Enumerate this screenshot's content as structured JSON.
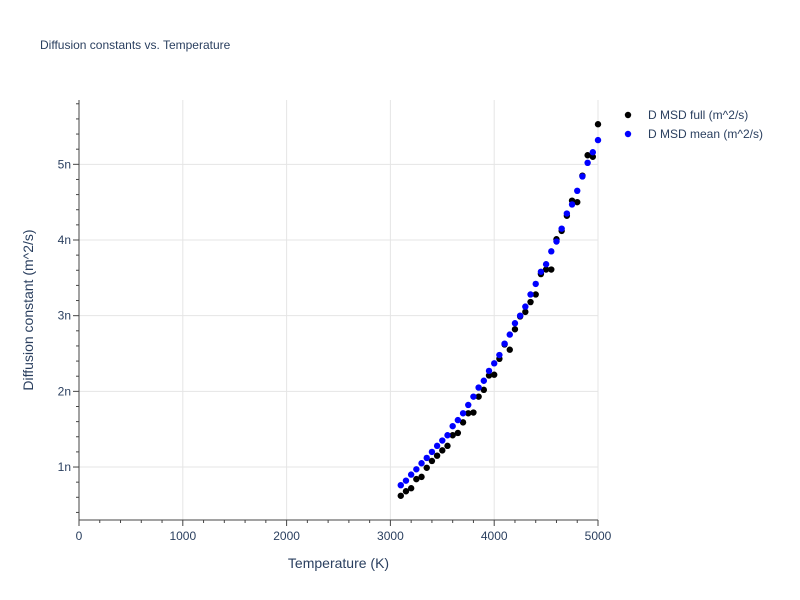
{
  "chart_data": {
    "type": "scatter",
    "title": "Diffusion constants vs. Temperature",
    "xlabel": "Temperature (K)",
    "ylabel": "Diffusion constant (m^2/s)",
    "xlim": [
      0,
      5000
    ],
    "ylim": [
      3e-10,
      5.85e-09
    ],
    "x_ticks": [
      0,
      1000,
      2000,
      3000,
      4000,
      5000
    ],
    "x_tick_labels": [
      "0",
      "1000",
      "2000",
      "3000",
      "4000",
      "5000"
    ],
    "y_ticks": [
      1e-09,
      2e-09,
      3e-09,
      4e-09,
      5e-09
    ],
    "y_tick_labels": [
      "1n",
      "2n",
      "3n",
      "4n",
      "5n"
    ],
    "grid": true,
    "legend_position": "top-right",
    "series": [
      {
        "name": "D MSD full (m^2/s)",
        "color": "#000000",
        "x": [
          3100,
          3150,
          3200,
          3250,
          3300,
          3350,
          3400,
          3450,
          3500,
          3550,
          3600,
          3650,
          3700,
          3750,
          3800,
          3850,
          3900,
          3950,
          4000,
          4050,
          4100,
          4150,
          4200,
          4250,
          4300,
          4350,
          4400,
          4450,
          4500,
          4550,
          4600,
          4650,
          4700,
          4750,
          4800,
          4850,
          4900,
          4950,
          5000
        ],
        "y": [
          6.2e-10,
          6.8e-10,
          7.2e-10,
          8.4e-10,
          8.7e-10,
          9.9e-10,
          1.08e-09,
          1.15e-09,
          1.22e-09,
          1.28e-09,
          1.42e-09,
          1.45e-09,
          1.59e-09,
          1.71e-09,
          1.72e-09,
          1.93e-09,
          2.02e-09,
          2.21e-09,
          2.22e-09,
          2.43e-09,
          2.62e-09,
          2.55e-09,
          2.82e-09,
          2.99e-09,
          3.05e-09,
          3.18e-09,
          3.28e-09,
          3.55e-09,
          3.61e-09,
          3.61e-09,
          4.01e-09,
          4.12e-09,
          4.32e-09,
          4.52e-09,
          4.5e-09,
          4.85e-09,
          5.12e-09,
          5.1e-09,
          5.53e-09
        ]
      },
      {
        "name": "D MSD mean (m^2/s)",
        "color": "#0000ff",
        "x": [
          3100,
          3150,
          3200,
          3250,
          3300,
          3350,
          3400,
          3450,
          3500,
          3550,
          3600,
          3650,
          3700,
          3750,
          3800,
          3850,
          3900,
          3950,
          4000,
          4050,
          4100,
          4150,
          4200,
          4250,
          4300,
          4350,
          4400,
          4450,
          4500,
          4550,
          4600,
          4650,
          4700,
          4750,
          4800,
          4850,
          4900,
          4950,
          5000
        ],
        "y": [
          7.6e-10,
          8.2e-10,
          9e-10,
          9.7e-10,
          1.05e-09,
          1.12e-09,
          1.2e-09,
          1.28e-09,
          1.35e-09,
          1.42e-09,
          1.54e-09,
          1.62e-09,
          1.71e-09,
          1.82e-09,
          1.93e-09,
          2.05e-09,
          2.14e-09,
          2.27e-09,
          2.37e-09,
          2.48e-09,
          2.63e-09,
          2.75e-09,
          2.9e-09,
          3e-09,
          3.12e-09,
          3.28e-09,
          3.42e-09,
          3.58e-09,
          3.68e-09,
          3.85e-09,
          3.98e-09,
          4.15e-09,
          4.35e-09,
          4.47e-09,
          4.65e-09,
          4.84e-09,
          5.02e-09,
          5.16e-09,
          5.32e-09
        ]
      }
    ]
  }
}
